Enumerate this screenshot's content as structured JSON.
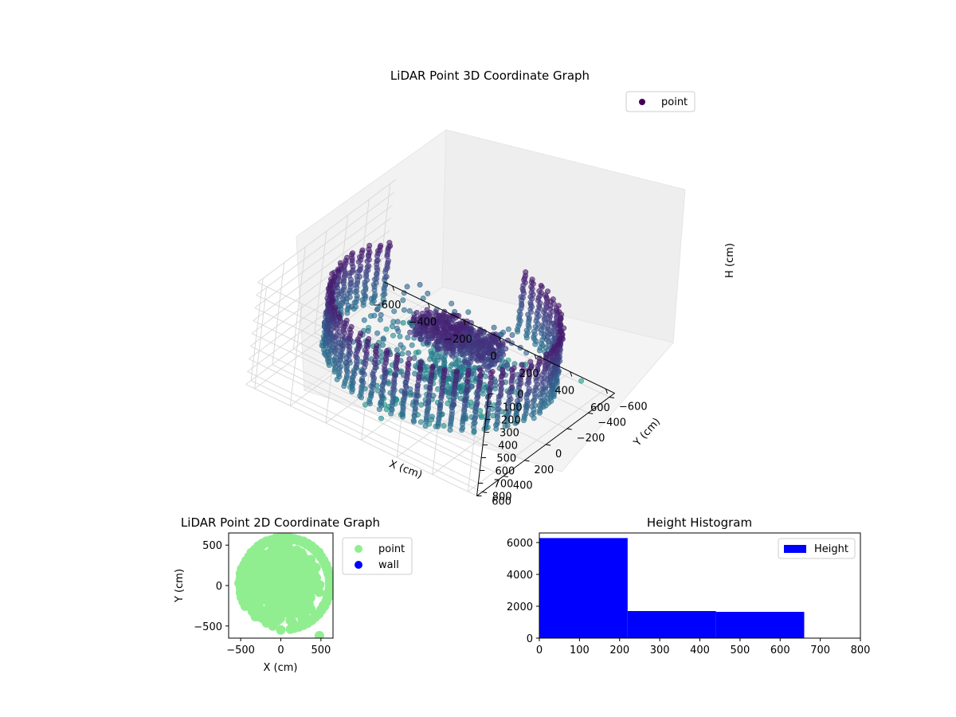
{
  "chart_data": [
    {
      "type": "scatter",
      "title": "LiDAR Point 3D Coordinate Graph",
      "xlabel": "X (cm)",
      "ylabel": "Y (cm)",
      "zlabel": "H (cm)",
      "xlim": [
        -650,
        650
      ],
      "ylim": [
        -650,
        650
      ],
      "zlim": [
        0,
        800
      ],
      "z_inverted": true,
      "x_ticks": [
        "−600",
        "−400",
        "−200",
        "0",
        "200",
        "400",
        "600"
      ],
      "y_ticks": [
        "−600",
        "−400",
        "−200",
        "0",
        "200",
        "400",
        "600"
      ],
      "z_ticks": [
        "0",
        "100",
        "200",
        "300",
        "400",
        "500",
        "600",
        "700",
        "800"
      ],
      "legend": {
        "position": "top-right",
        "entries": [
          {
            "label": "point",
            "color": "#440154"
          }
        ]
      },
      "colormap": "viridis",
      "grid": true,
      "structure": {
        "ring_center": [
          50,
          30
        ],
        "ring_radius": 560,
        "ring_height_range": [
          100,
          560
        ],
        "interior_clusters": [
          {
            "x": 80,
            "y": 120,
            "h": 200
          },
          {
            "x": 250,
            "y": 60,
            "h": 260
          },
          {
            "x": 60,
            "y": -20,
            "h": 650
          }
        ]
      },
      "outliers": [
        {
          "x": 0,
          "y": -550,
          "h": 820
        },
        {
          "x": 480,
          "y": -620,
          "h": 800
        },
        {
          "x": 120,
          "y": -540,
          "h": 830
        },
        {
          "x": -100,
          "y": -500,
          "h": 800
        }
      ]
    },
    {
      "type": "scatter",
      "title": "LiDAR Point 2D Coordinate Graph",
      "xlabel": "X (cm)",
      "ylabel": "Y (cm)",
      "xlim": [
        -650,
        650
      ],
      "ylim": [
        -650,
        650
      ],
      "x_ticks": [
        "−500",
        "0",
        "500"
      ],
      "y_ticks": [
        "500",
        "0",
        "−500"
      ],
      "legend": {
        "position": "outside-right",
        "entries": [
          {
            "label": "point",
            "color": "#90ee90"
          },
          {
            "label": "wall",
            "color": "#0000ff"
          }
        ]
      },
      "point_color": "#90ee90",
      "wall_color": "#0000ff"
    },
    {
      "type": "bar",
      "title": "Height Histogram",
      "xlabel": "",
      "ylabel": "",
      "bin_edges": [
        0,
        220,
        440,
        660,
        880
      ],
      "counts": [
        6280,
        1700,
        1650,
        0
      ],
      "xlim": [
        0,
        800
      ],
      "ylim": [
        0,
        6600
      ],
      "x_ticks": [
        "0",
        "100",
        "200",
        "300",
        "400",
        "500",
        "600",
        "700",
        "800"
      ],
      "y_ticks": [
        "0",
        "2000",
        "4000",
        "6000"
      ],
      "legend": {
        "position": "top-right",
        "entries": [
          {
            "label": "Height",
            "color": "#0000ff"
          }
        ]
      },
      "bar_color": "#0000ff"
    }
  ]
}
